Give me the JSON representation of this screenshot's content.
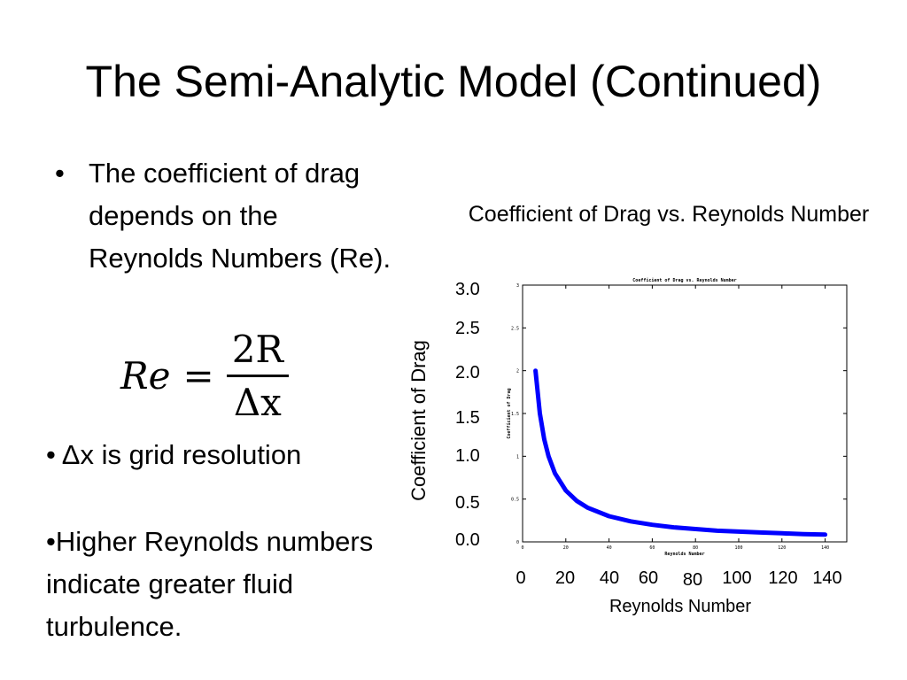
{
  "slide": {
    "title": "The Semi-Analytic Model (Continued)",
    "bullet_symbol": "•",
    "bullet_text": "The coefficient of drag depends on the Reynolds Numbers (Re).",
    "formula": {
      "lhs": "Re",
      "eq": "=",
      "num": "2R",
      "den": "Δx"
    },
    "note1": "• Δx is grid resolution",
    "note2": "•Higher Reynolds numbers indicate greater fluid turbulence."
  },
  "chart_labels": {
    "title": "Coefficient of Drag vs. Reynolds Number",
    "ylabel": "Coefficient of Drag",
    "xlabel": "Reynolds Number",
    "yticks": [
      "0.0",
      "0.5",
      "1.0",
      "1.5",
      "2.0",
      "2.5",
      "3.0"
    ],
    "xticks": [
      "0",
      "20",
      "40",
      "60",
      "80",
      "100",
      "120",
      "140"
    ],
    "inner_title": "Coefficient of Drag vs. Reynolds Number",
    "inner_xlabel": "Reynolds Number",
    "inner_ylabel": "Coefficient of Drag",
    "inner_yticks": [
      "0",
      "0.5",
      "1",
      "1.5",
      "2",
      "2.5",
      "3"
    ],
    "inner_xticks": [
      "0",
      "20",
      "40",
      "60",
      "80",
      "100",
      "120",
      "140"
    ]
  },
  "chart_data": {
    "type": "line",
    "title": "Coefficient of Drag vs. Reynolds Number",
    "xlabel": "Reynolds Number",
    "ylabel": "Coefficient of Drag",
    "xlim": [
      0,
      150
    ],
    "ylim": [
      0,
      3
    ],
    "grid": false,
    "series": [
      {
        "color": "#0000ff",
        "x": [
          6,
          8,
          10,
          12,
          15,
          20,
          25,
          30,
          40,
          50,
          60,
          70,
          80,
          90,
          100,
          110,
          120,
          130,
          140
        ],
        "y": [
          2.0,
          1.5,
          1.2,
          1.0,
          0.8,
          0.6,
          0.48,
          0.4,
          0.3,
          0.24,
          0.2,
          0.17,
          0.15,
          0.13,
          0.12,
          0.11,
          0.1,
          0.09,
          0.085
        ]
      }
    ]
  }
}
